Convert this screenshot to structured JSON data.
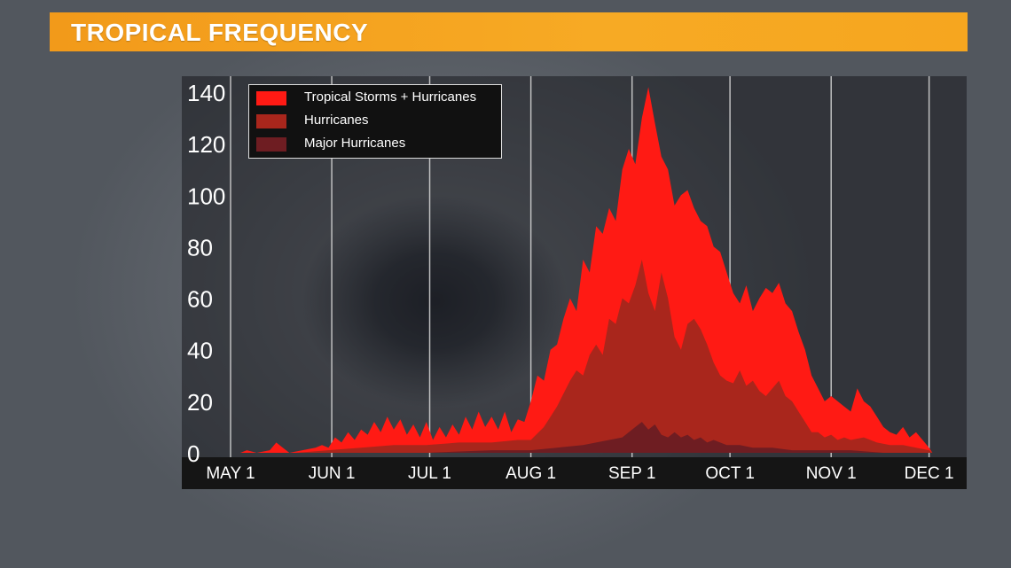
{
  "header": {
    "title": "TROPICAL FREQUENCY"
  },
  "legend": [
    {
      "label": "Tropical Storms + Hurricanes",
      "color": "#ff1a14"
    },
    {
      "label": "Hurricanes",
      "color": "#a9261c"
    },
    {
      "label": "Major Hurricanes",
      "color": "#6e1d22"
    }
  ],
  "chart_data": {
    "type": "area",
    "title": "TROPICAL FREQUENCY",
    "xlabel": "",
    "ylabel": "",
    "ylim": [
      0,
      140
    ],
    "y_ticks": [
      0,
      20,
      40,
      60,
      80,
      100,
      120,
      140
    ],
    "x_ticks": [
      "MAY 1",
      "JUN 1",
      "JUL 1",
      "AUG 1",
      "SEP 1",
      "OCT 1",
      "NOV 1",
      "DEC 1"
    ],
    "x_tick_days": [
      0,
      31,
      61,
      92,
      123,
      153,
      184,
      214
    ],
    "x_range_days": [
      0,
      216
    ],
    "grid": "vertical",
    "legend_position": "top-left",
    "series": [
      {
        "name": "Tropical Storms + Hurricanes",
        "color": "#ff1a14",
        "points": [
          [
            3,
            0
          ],
          [
            5,
            1
          ],
          [
            8,
            0
          ],
          [
            12,
            1
          ],
          [
            14,
            4
          ],
          [
            16,
            2
          ],
          [
            18,
            0
          ],
          [
            22,
            1
          ],
          [
            26,
            2
          ],
          [
            28,
            3
          ],
          [
            30,
            2
          ],
          [
            32,
            6
          ],
          [
            34,
            4
          ],
          [
            36,
            8
          ],
          [
            38,
            5
          ],
          [
            40,
            9
          ],
          [
            42,
            7
          ],
          [
            44,
            12
          ],
          [
            46,
            8
          ],
          [
            48,
            14
          ],
          [
            50,
            9
          ],
          [
            52,
            13
          ],
          [
            54,
            7
          ],
          [
            56,
            11
          ],
          [
            58,
            6
          ],
          [
            60,
            12
          ],
          [
            62,
            5
          ],
          [
            64,
            10
          ],
          [
            66,
            6
          ],
          [
            68,
            11
          ],
          [
            70,
            7
          ],
          [
            72,
            14
          ],
          [
            74,
            9
          ],
          [
            76,
            16
          ],
          [
            78,
            10
          ],
          [
            80,
            14
          ],
          [
            82,
            9
          ],
          [
            84,
            16
          ],
          [
            86,
            8
          ],
          [
            88,
            13
          ],
          [
            90,
            12
          ],
          [
            92,
            20
          ],
          [
            94,
            30
          ],
          [
            96,
            28
          ],
          [
            98,
            40
          ],
          [
            100,
            42
          ],
          [
            102,
            52
          ],
          [
            104,
            60
          ],
          [
            106,
            55
          ],
          [
            108,
            75
          ],
          [
            110,
            70
          ],
          [
            112,
            88
          ],
          [
            114,
            85
          ],
          [
            116,
            95
          ],
          [
            118,
            90
          ],
          [
            120,
            110
          ],
          [
            122,
            118
          ],
          [
            124,
            112
          ],
          [
            126,
            130
          ],
          [
            128,
            142
          ],
          [
            130,
            128
          ],
          [
            132,
            115
          ],
          [
            134,
            110
          ],
          [
            136,
            96
          ],
          [
            138,
            100
          ],
          [
            140,
            102
          ],
          [
            142,
            95
          ],
          [
            144,
            90
          ],
          [
            146,
            88
          ],
          [
            148,
            80
          ],
          [
            150,
            78
          ],
          [
            152,
            70
          ],
          [
            154,
            62
          ],
          [
            156,
            58
          ],
          [
            158,
            65
          ],
          [
            160,
            55
          ],
          [
            162,
            60
          ],
          [
            164,
            64
          ],
          [
            166,
            62
          ],
          [
            168,
            66
          ],
          [
            170,
            58
          ],
          [
            172,
            55
          ],
          [
            174,
            47
          ],
          [
            176,
            40
          ],
          [
            178,
            30
          ],
          [
            180,
            25
          ],
          [
            182,
            20
          ],
          [
            184,
            22
          ],
          [
            186,
            20
          ],
          [
            188,
            18
          ],
          [
            190,
            16
          ],
          [
            192,
            25
          ],
          [
            194,
            20
          ],
          [
            196,
            18
          ],
          [
            198,
            14
          ],
          [
            200,
            10
          ],
          [
            202,
            8
          ],
          [
            204,
            7
          ],
          [
            206,
            10
          ],
          [
            208,
            6
          ],
          [
            210,
            8
          ],
          [
            212,
            5
          ],
          [
            214,
            2
          ],
          [
            215,
            0
          ]
        ]
      },
      {
        "name": "Hurricanes",
        "color": "#a9261c",
        "points": [
          [
            20,
            0
          ],
          [
            30,
            1
          ],
          [
            40,
            2
          ],
          [
            50,
            3
          ],
          [
            60,
            3
          ],
          [
            70,
            4
          ],
          [
            80,
            4
          ],
          [
            88,
            5
          ],
          [
            92,
            5
          ],
          [
            96,
            10
          ],
          [
            100,
            18
          ],
          [
            104,
            28
          ],
          [
            106,
            32
          ],
          [
            108,
            30
          ],
          [
            110,
            38
          ],
          [
            112,
            42
          ],
          [
            114,
            38
          ],
          [
            116,
            52
          ],
          [
            118,
            50
          ],
          [
            120,
            60
          ],
          [
            122,
            58
          ],
          [
            124,
            65
          ],
          [
            126,
            75
          ],
          [
            128,
            62
          ],
          [
            130,
            55
          ],
          [
            132,
            70
          ],
          [
            134,
            60
          ],
          [
            136,
            45
          ],
          [
            138,
            40
          ],
          [
            140,
            50
          ],
          [
            142,
            52
          ],
          [
            144,
            48
          ],
          [
            146,
            42
          ],
          [
            148,
            35
          ],
          [
            150,
            30
          ],
          [
            152,
            28
          ],
          [
            154,
            27
          ],
          [
            156,
            32
          ],
          [
            158,
            26
          ],
          [
            160,
            28
          ],
          [
            162,
            24
          ],
          [
            164,
            22
          ],
          [
            166,
            25
          ],
          [
            168,
            28
          ],
          [
            170,
            22
          ],
          [
            172,
            20
          ],
          [
            174,
            16
          ],
          [
            176,
            12
          ],
          [
            178,
            8
          ],
          [
            180,
            8
          ],
          [
            182,
            6
          ],
          [
            184,
            7
          ],
          [
            186,
            5
          ],
          [
            188,
            6
          ],
          [
            190,
            5
          ],
          [
            194,
            6
          ],
          [
            198,
            4
          ],
          [
            202,
            3
          ],
          [
            206,
            3
          ],
          [
            210,
            2
          ],
          [
            214,
            1
          ],
          [
            215,
            0
          ]
        ]
      },
      {
        "name": "Major Hurricanes",
        "color": "#6e1d22",
        "points": [
          [
            60,
            0
          ],
          [
            80,
            1
          ],
          [
            92,
            1
          ],
          [
            100,
            2
          ],
          [
            108,
            3
          ],
          [
            112,
            4
          ],
          [
            116,
            5
          ],
          [
            120,
            6
          ],
          [
            124,
            10
          ],
          [
            126,
            12
          ],
          [
            128,
            9
          ],
          [
            130,
            11
          ],
          [
            132,
            7
          ],
          [
            134,
            6
          ],
          [
            136,
            8
          ],
          [
            138,
            6
          ],
          [
            140,
            7
          ],
          [
            142,
            5
          ],
          [
            144,
            6
          ],
          [
            146,
            4
          ],
          [
            148,
            5
          ],
          [
            150,
            4
          ],
          [
            152,
            3
          ],
          [
            156,
            3
          ],
          [
            160,
            2
          ],
          [
            166,
            2
          ],
          [
            172,
            1
          ],
          [
            180,
            1
          ],
          [
            190,
            1
          ],
          [
            200,
            0
          ]
        ]
      }
    ]
  }
}
